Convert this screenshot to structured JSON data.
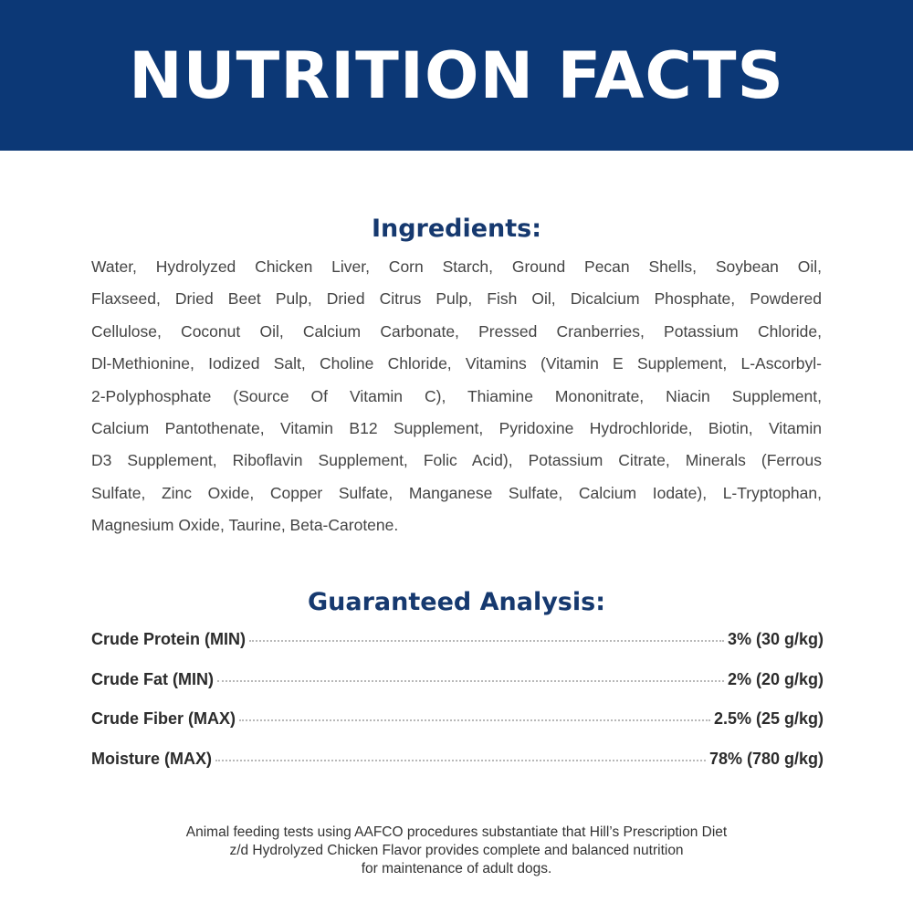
{
  "header": {
    "title": "NUTRITION FACTS"
  },
  "colors": {
    "header_bg": "#0c3876",
    "heading": "#16396f"
  },
  "ingredients": {
    "title": "Ingredients:",
    "lines": [
      "Water, Hydrolyzed Chicken Liver, Corn Starch, Ground Pecan Shells, Soybean Oil,",
      "Flaxseed, Dried Beet Pulp, Dried Citrus Pulp, Fish Oil, Dicalcium Phosphate, Powdered",
      "Cellulose, Coconut Oil, Calcium Carbonate, Pressed Cranberries, Potassium Chloride,",
      "Dl-Methionine, Iodized Salt, Choline Chloride, Vitamins (Vitamin E Supplement, L-Ascorbyl-",
      "2-Polyphosphate (Source Of Vitamin C), Thiamine Mononitrate, Niacin Supplement,",
      "Calcium Pantothenate, Vitamin B12 Supplement, Pyridoxine Hydrochloride, Biotin, Vitamin",
      "D3 Supplement, Riboflavin Supplement, Folic Acid), Potassium Citrate, Minerals (Ferrous",
      "Sulfate, Zinc Oxide, Copper Sulfate, Manganese Sulfate, Calcium Iodate), L-Tryptophan,",
      "Magnesium Oxide, Taurine, Beta-Carotene."
    ]
  },
  "analysis": {
    "title": "Guaranteed Analysis:",
    "rows": [
      {
        "label": "Crude Protein (MIN)",
        "value": "3% (30 g/kg)"
      },
      {
        "label": "Crude Fat (MIN)",
        "value": "2% (20 g/kg)"
      },
      {
        "label": "Crude Fiber (MAX)",
        "value": "2.5% (25 g/kg)"
      },
      {
        "label": "Moisture (MAX)",
        "value": "78% (780 g/kg)"
      }
    ]
  },
  "footer": {
    "lines": [
      "Animal feeding tests using AAFCO procedures substantiate that Hill’s Prescription Diet",
      "z/d Hydrolyzed Chicken Flavor provides complete and balanced nutrition",
      "for maintenance of adult dogs."
    ]
  }
}
